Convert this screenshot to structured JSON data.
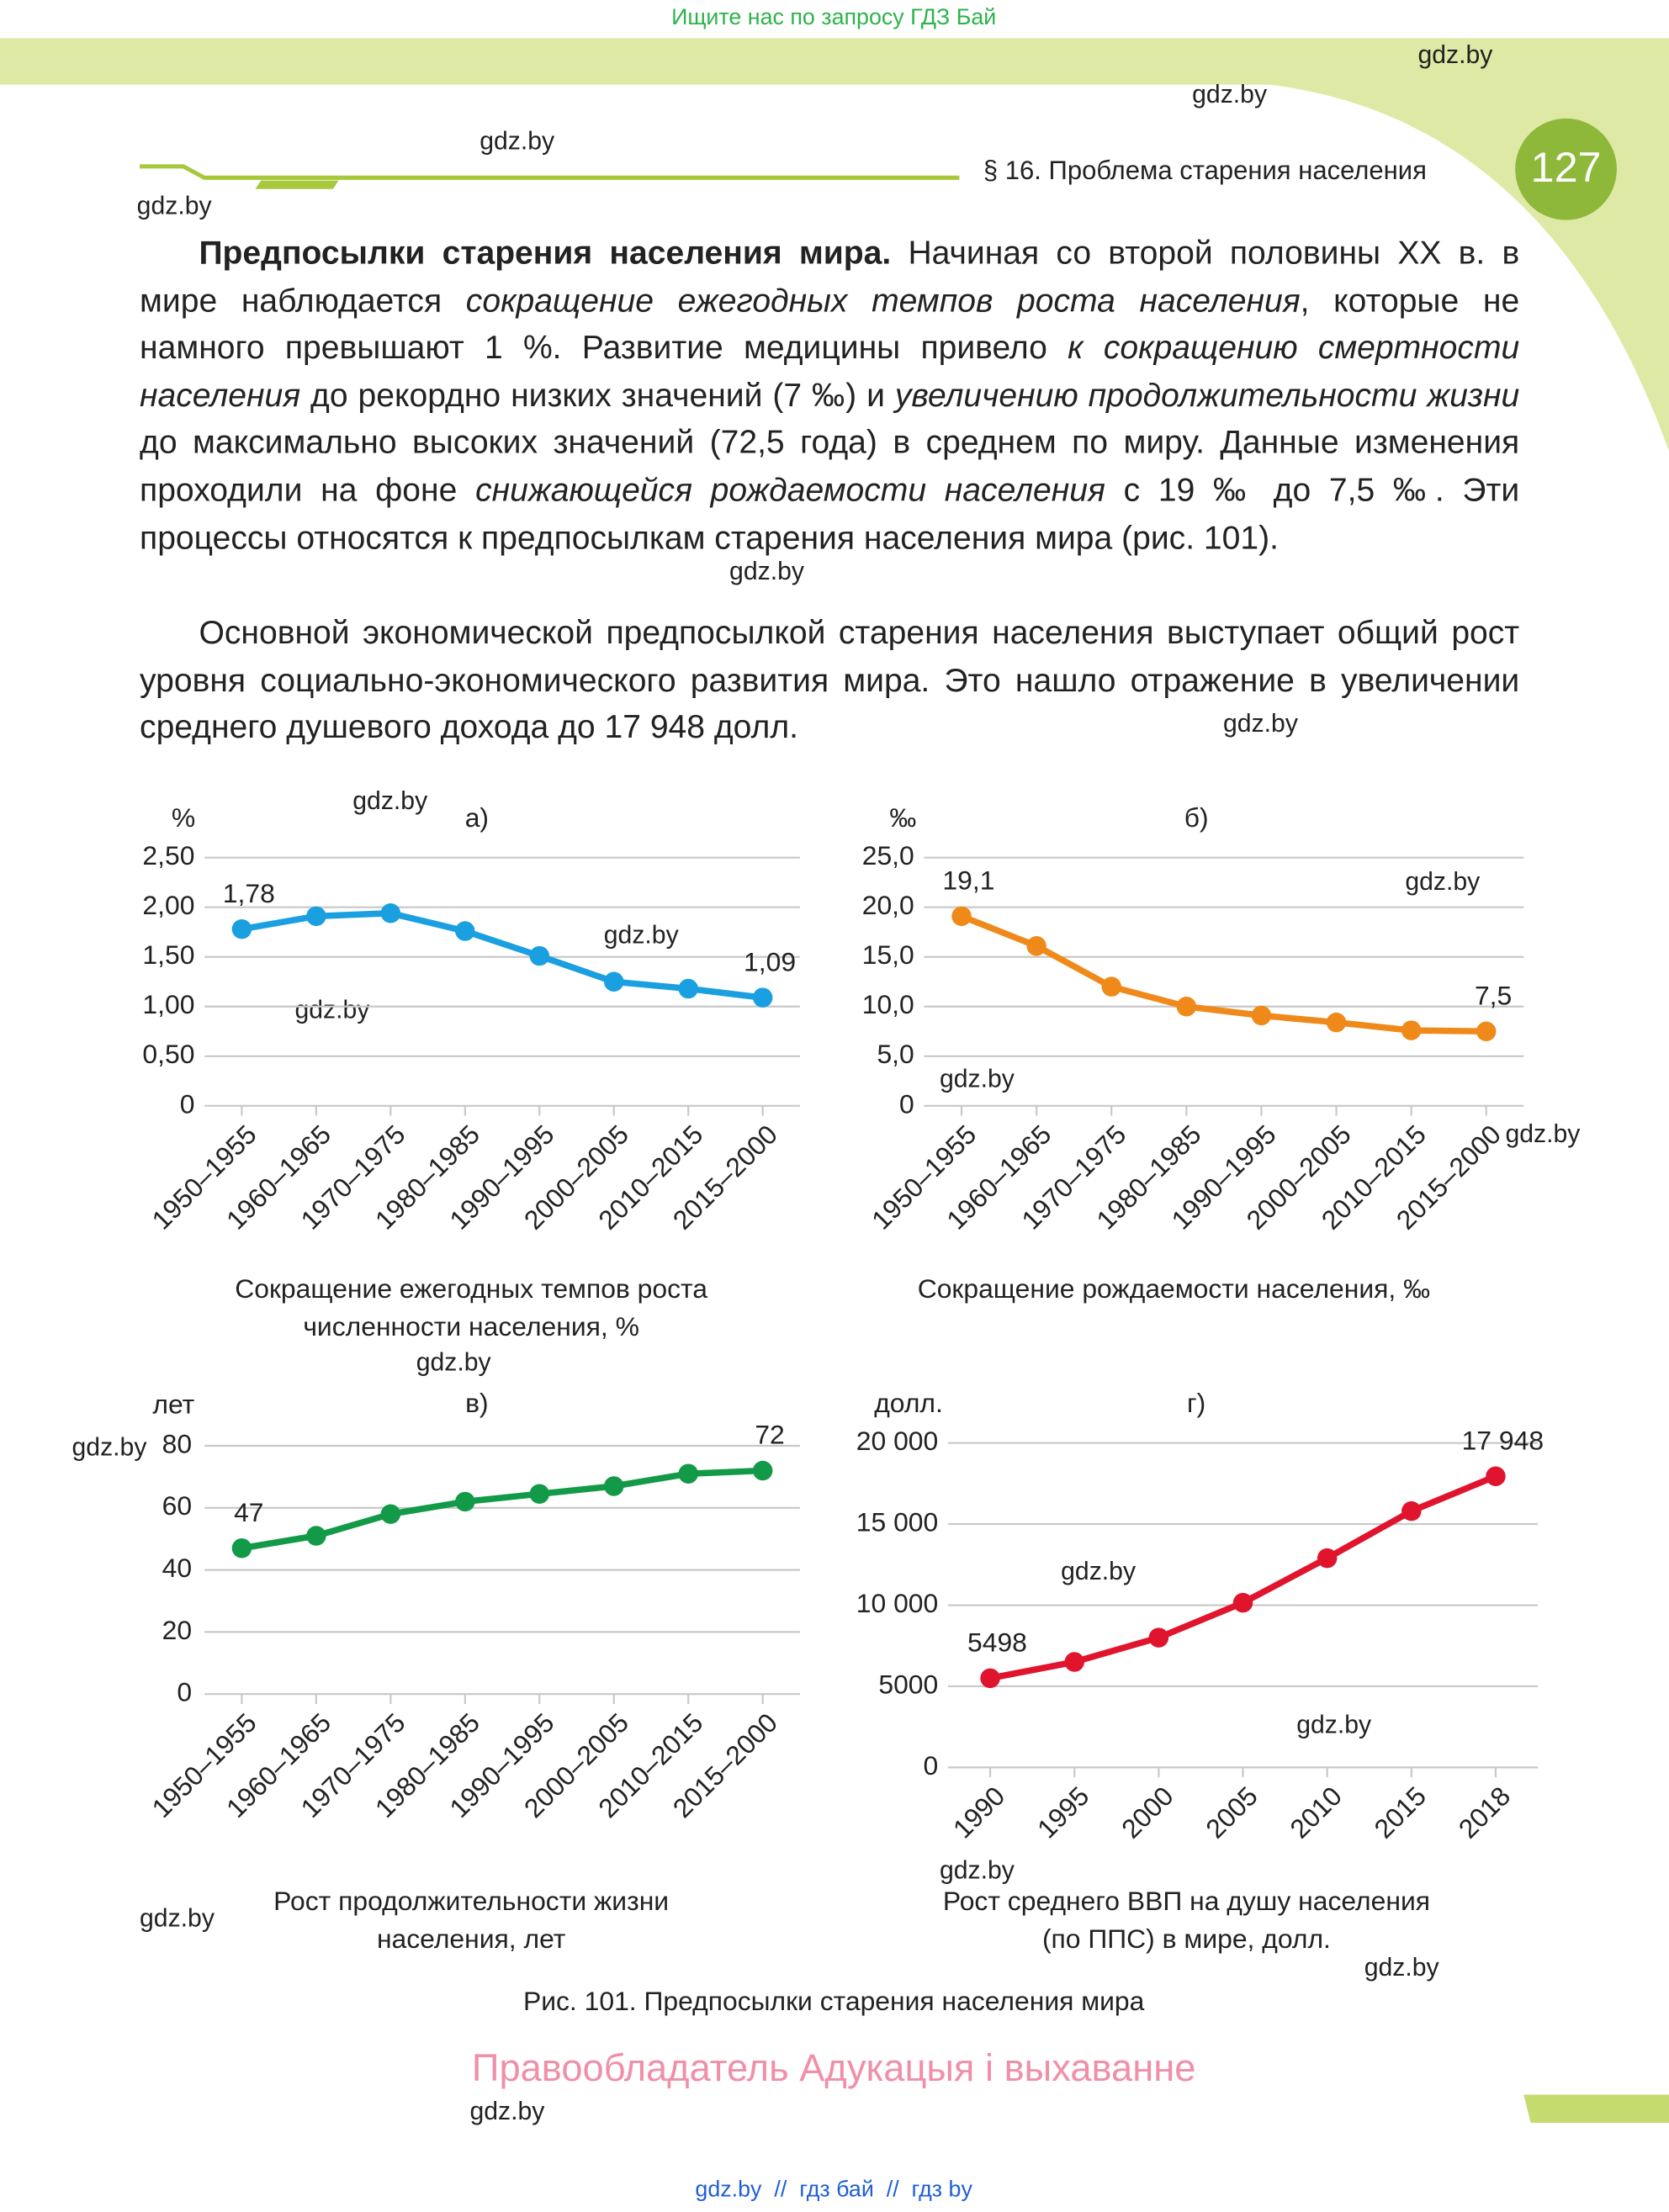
{
  "banner": "Ищите нас по запросу ГДЗ Бай",
  "header": {
    "section": "§ 16. Проблема старения населения",
    "page_number": "127"
  },
  "paragraphs": [
    [
      {
        "text": "Предпосылки старения населения мира.",
        "bold": true
      },
      {
        "text": " Начиная со второй половины XX в. в мире наблюдается "
      },
      {
        "text": "сокращение ежегодных темпов роста населения",
        "italic": true
      },
      {
        "text": ", которые не намного превышают 1 %. Развитие медицины привело "
      },
      {
        "text": "к сокращению смертности населения",
        "italic": true
      },
      {
        "text": " до рекордно низких значений (7 ‰) и "
      },
      {
        "text": "увеличению продолжительности жизни",
        "italic": true
      },
      {
        "text": " до максимально высоких значений (72,5 года) в среднем по миру. Данные изменения проходили на фоне "
      },
      {
        "text": "снижающейся рождаемости населения",
        "italic": true
      },
      {
        "text": " с 19 ‰ до 7,5 ‰. Эти процессы относятся к предпосылкам старения населения мира (рис. 101)."
      }
    ],
    [
      {
        "text": "Основной экономической предпосылкой старения населения выступает общий рост уровня социально-экономического развития мира. Это нашло отражение в увеличении среднего душевого дохода до 17 948 долл."
      }
    ]
  ],
  "chart_data": [
    {
      "type": "line",
      "panel": "а)",
      "unit": "%",
      "caption": [
        "Сокращение ежегодных темпов роста",
        "численности населения, %"
      ],
      "categories": [
        "1950–1955",
        "1960–1965",
        "1970–1975",
        "1980–1985",
        "1990–1995",
        "2000–2005",
        "2010–2015",
        "2015–2000"
      ],
      "series": [
        {
          "color": "#1a9fe0",
          "values": [
            1.78,
            1.91,
            1.94,
            1.76,
            1.51,
            1.25,
            1.18,
            1.09
          ],
          "value_labels": [
            "1,78",
            null,
            null,
            null,
            null,
            null,
            null,
            "1,09"
          ]
        }
      ],
      "ylim": [
        0,
        2.5
      ],
      "yticks": [
        0,
        {
          "value": 0.5,
          "label": "0,50"
        },
        {
          "value": 1,
          "label": "1,00"
        },
        {
          "value": 1.5,
          "label": "1,50"
        },
        {
          "value": 2,
          "label": "2,00"
        },
        {
          "value": 2.5,
          "label": "2,50"
        }
      ],
      "grid": true
    },
    {
      "type": "line",
      "panel": "б)",
      "unit": "‰",
      "caption": [
        "Сокращение рождаемости населения, ‰"
      ],
      "categories": [
        "1950–1955",
        "1960–1965",
        "1970–1975",
        "1980–1985",
        "1990–1995",
        "2000–2005",
        "2010–2015",
        "2015–2000"
      ],
      "series": [
        {
          "color": "#ef8a1a",
          "values": [
            19.1,
            16.1,
            12.0,
            10.0,
            9.1,
            8.4,
            7.6,
            7.5
          ],
          "value_labels": [
            "19,1",
            null,
            null,
            null,
            null,
            null,
            null,
            "7,5"
          ]
        }
      ],
      "ylim": [
        0,
        25
      ],
      "yticks": [
        0,
        {
          "value": 5,
          "label": "5,0"
        },
        {
          "value": 10,
          "label": "10,0"
        },
        {
          "value": 15,
          "label": "15,0"
        },
        {
          "value": 20,
          "label": "20,0"
        },
        {
          "value": 25,
          "label": "25,0"
        }
      ],
      "grid": true
    },
    {
      "type": "line",
      "panel": "в)",
      "unit": "лет",
      "caption": [
        "Рост продолжительности жизни",
        "населения, лет"
      ],
      "categories": [
        "1950–1955",
        "1960–1965",
        "1970–1975",
        "1980–1985",
        "1990–1995",
        "2000–2005",
        "2010–2015",
        "2015–2000"
      ],
      "series": [
        {
          "color": "#129a48",
          "values": [
            47,
            51,
            58,
            62,
            64.5,
            67,
            71,
            72
          ],
          "value_labels": [
            "47",
            null,
            null,
            null,
            null,
            null,
            null,
            "72"
          ]
        }
      ],
      "ylim": [
        0,
        80
      ],
      "yticks": [
        0,
        20,
        40,
        60,
        80
      ],
      "grid": true
    },
    {
      "type": "line",
      "panel": "г)",
      "unit": "долл.",
      "caption": [
        "Рост среднего ВВП на душу населения",
        "(по ППС) в мире, долл."
      ],
      "categories": [
        "1990",
        "1995",
        "2000",
        "2005",
        "2010",
        "2015",
        "2018"
      ],
      "series": [
        {
          "color": "#e0142c",
          "values": [
            5498,
            6500,
            8000,
            10150,
            12900,
            15800,
            17948
          ],
          "value_labels": [
            "5498",
            null,
            null,
            null,
            null,
            null,
            "17 948"
          ]
        }
      ],
      "ylim": [
        0,
        20000
      ],
      "yticks": [
        0,
        5000,
        {
          "value": 10000,
          "label": "10 000"
        },
        {
          "value": 15000,
          "label": "15 000"
        },
        {
          "value": 20000,
          "label": "20 000"
        }
      ],
      "grid": true
    }
  ],
  "figure_caption": "Рис. 101. Предпосылки старения населения мира",
  "rights": "Правообладатель Адукацыя і выхаванне",
  "footer": "gdz.by  //  гдз бай  //  гдз by",
  "watermarks": [
    "gdz.by",
    "gdz.by",
    "gdz.by",
    "gdz.by",
    "gdz.by",
    "gdz.by",
    "gdz.by",
    "gdz.by",
    "gdz.by",
    "gdz.by",
    "gdz.by",
    "gdz.by",
    "gdz.by",
    "gdz.by",
    "gdz.by",
    "gdz.by",
    "gdz.by",
    "gdz.by",
    "gdz.by",
    "gdz.by"
  ]
}
